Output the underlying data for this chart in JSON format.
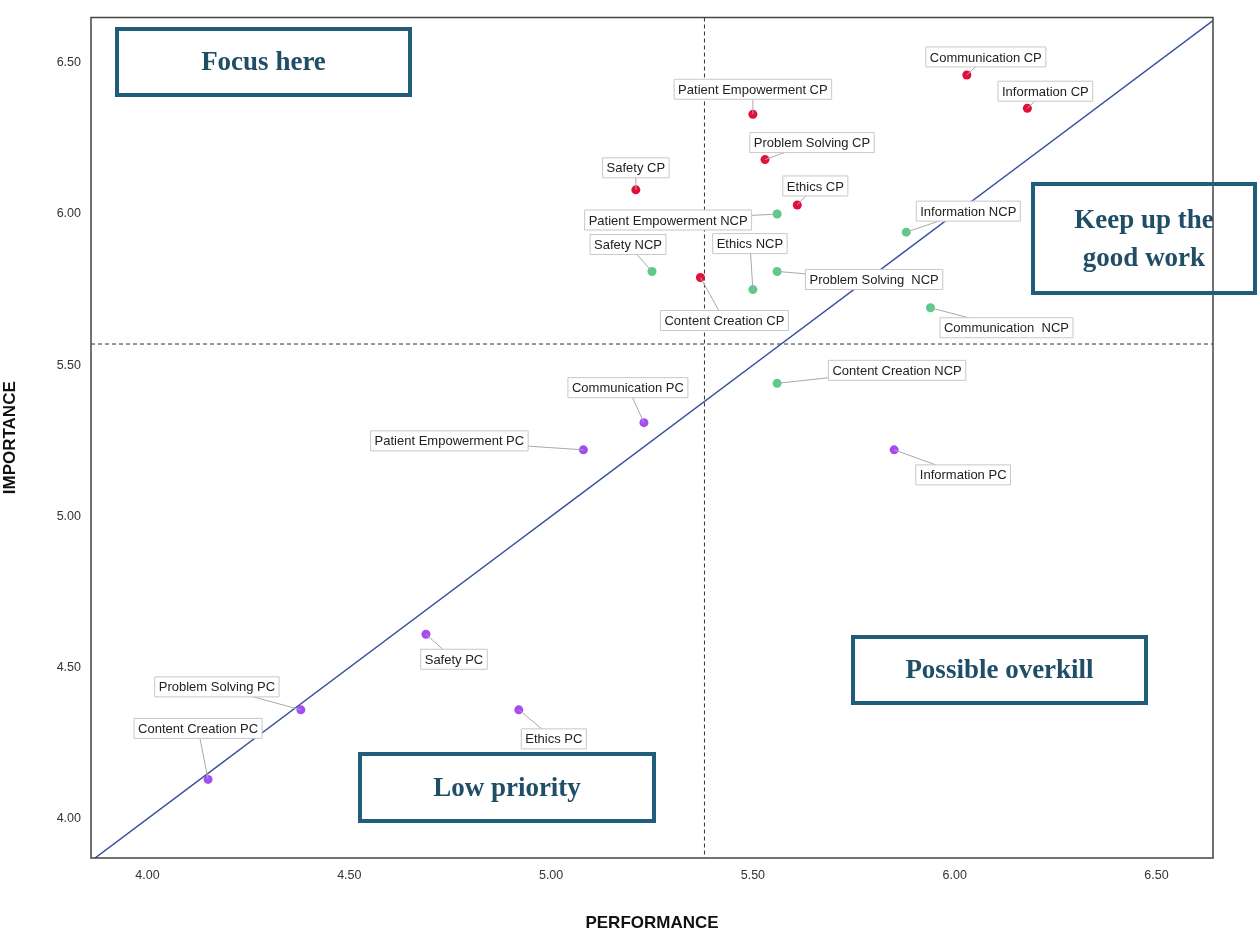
{
  "chart_data": {
    "type": "scatter",
    "xlabel": "PERFORMANCE",
    "ylabel": "IMPORTANCE",
    "xlim": [
      3.86,
      6.64
    ],
    "ylim": [
      3.87,
      6.65
    ],
    "xticks": [
      {
        "value": 4,
        "label": "4.00"
      },
      {
        "value": 4.5,
        "label": "4.50"
      },
      {
        "value": 5,
        "label": "5.00"
      },
      {
        "value": 5.5,
        "label": "5.50"
      },
      {
        "value": 6,
        "label": "6.00"
      },
      {
        "value": 6.5,
        "label": "6.50"
      }
    ],
    "yticks": [
      {
        "value": 4,
        "label": "4.00"
      },
      {
        "value": 4.5,
        "label": "4.50"
      },
      {
        "value": 5,
        "label": "5.00"
      },
      {
        "value": 5.5,
        "label": "5.50"
      },
      {
        "value": 6,
        "label": "6.00"
      },
      {
        "value": 6.5,
        "label": "6.50"
      }
    ],
    "grid": false,
    "legend": false,
    "marker": "circle",
    "series": [
      {
        "color": "#e0103a",
        "x": [
          6.03,
          6.18,
          5.5,
          5.53,
          5.21,
          5.61,
          5.37
        ],
        "values": [
          6.46,
          6.35,
          6.33,
          6.18,
          6.08,
          6.03,
          5.79
        ]
      },
      {
        "color": "#5ccb8a",
        "x": [
          5.56,
          5.88,
          5.25,
          5.5,
          5.56,
          5.94,
          5.56
        ],
        "values": [
          6.0,
          5.94,
          5.81,
          5.75,
          5.81,
          5.69,
          5.44
        ]
      },
      {
        "color": "#a64bf4",
        "x": [
          5.23,
          5.08,
          5.85,
          4.69,
          4.38,
          4.15,
          4.92
        ],
        "values": [
          5.31,
          5.22,
          5.22,
          4.61,
          4.36,
          4.13,
          4.36
        ]
      },
      {
        "type": "line",
        "color": "#3a4f9e",
        "marker": "none",
        "x": [
          3.87,
          6.64
        ],
        "values": [
          3.87,
          6.64
        ]
      }
    ],
    "ref_lines": [
      {
        "axis": "x",
        "value": 5.38,
        "color": "#333333",
        "line_style": "dashed"
      },
      {
        "axis": "y",
        "value": 5.57,
        "color": "#333333",
        "line_style": "dashed"
      }
    ],
    "annotations": [
      "Focus here",
      "Keep up the good work",
      "Possible overkill",
      "Low priority",
      {
        "text": "Communication CP",
        "x": 6.03,
        "y": 6.46
      },
      {
        "text": "Information CP",
        "x": 6.18,
        "y": 6.35
      },
      {
        "text": "Patient Empowerment CP",
        "x": 5.5,
        "y": 6.33
      },
      {
        "text": "Problem Solving CP",
        "x": 5.53,
        "y": 6.18
      },
      {
        "text": "Safety CP",
        "x": 5.21,
        "y": 6.08
      },
      {
        "text": "Ethics CP",
        "x": 5.61,
        "y": 6.03
      },
      {
        "text": "Content Creation CP",
        "x": 5.37,
        "y": 5.79
      },
      {
        "text": "Patient Empowerment NCP",
        "x": 5.56,
        "y": 6.0
      },
      {
        "text": "Information NCP",
        "x": 5.88,
        "y": 5.94
      },
      {
        "text": "Safety NCP",
        "x": 5.25,
        "y": 5.81
      },
      {
        "text": "Ethics NCP",
        "x": 5.5,
        "y": 5.75
      },
      {
        "text": "Problem Solving  NCP",
        "x": 5.56,
        "y": 5.81
      },
      {
        "text": "Communication  NCP",
        "x": 5.94,
        "y": 5.69
      },
      {
        "text": "Content Creation NCP",
        "x": 5.56,
        "y": 5.44
      },
      {
        "text": "Communication PC",
        "x": 5.23,
        "y": 5.31
      },
      {
        "text": "Patient Empowerment PC",
        "x": 5.08,
        "y": 5.22
      },
      {
        "text": "Information PC",
        "x": 5.85,
        "y": 5.22
      },
      {
        "text": "Safety PC",
        "x": 4.69,
        "y": 4.61
      },
      {
        "text": "Problem Solving PC",
        "x": 4.38,
        "y": 4.36
      },
      {
        "text": "Content Creation PC",
        "x": 4.15,
        "y": 4.13
      },
      {
        "text": "Ethics PC",
        "x": 4.92,
        "y": 4.36
      }
    ]
  }
}
